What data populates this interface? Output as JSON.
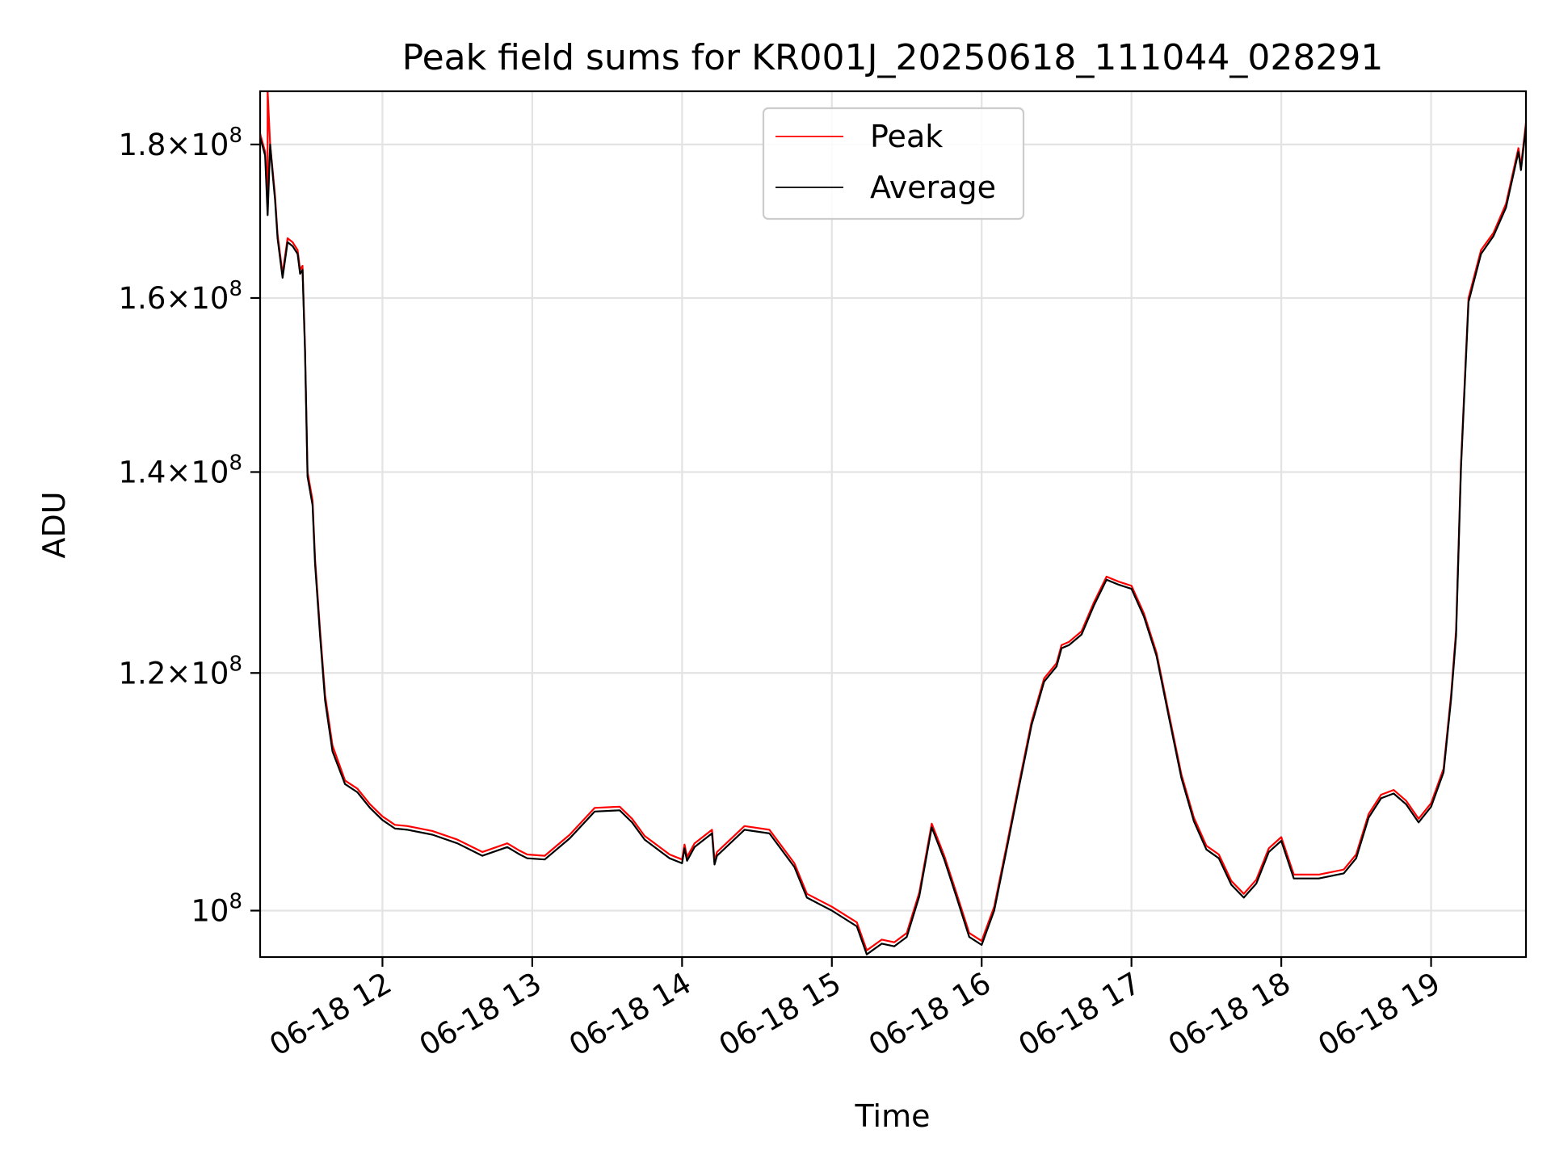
{
  "chart_data": {
    "type": "line",
    "title": "Peak field sums for KR001J_20250618_111044_028291",
    "xlabel": "Time",
    "ylabel": "ADU",
    "y_scale": "log",
    "xlim": [
      "06-18 11:11",
      "06-18 19:38"
    ],
    "ylim": [
      96500000,
      187500000
    ],
    "grid": true,
    "legend_position": "upper center",
    "x_ticks": [
      "06-18 12",
      "06-18 13",
      "06-18 14",
      "06-18 15",
      "06-18 16",
      "06-18 17",
      "06-18 18",
      "06-18 19"
    ],
    "y_ticks": [
      {
        "value": 100000000,
        "mantissa": "",
        "exp": "8"
      },
      {
        "value": 120000000,
        "mantissa": "1.2",
        "exp": "8"
      },
      {
        "value": 140000000,
        "mantissa": "1.4",
        "exp": "8"
      },
      {
        "value": 160000000,
        "mantissa": "1.6",
        "exp": "8"
      },
      {
        "value": 180000000,
        "mantissa": "1.8",
        "exp": "8"
      }
    ],
    "series": [
      {
        "name": "Peak",
        "color": "#ff0000",
        "x": [
          "06-18 11:11",
          "06-18 11:13",
          "06-18 11:14",
          "06-18 11:14",
          "06-18 11:15",
          "06-18 11:16",
          "06-18 11:17",
          "06-18 11:18",
          "06-18 11:20",
          "06-18 11:22",
          "06-18 11:24",
          "06-18 11:26",
          "06-18 11:27",
          "06-18 11:28",
          "06-18 11:29",
          "06-18 11:30",
          "06-18 11:32",
          "06-18 11:33",
          "06-18 11:35",
          "06-18 11:37",
          "06-18 11:40",
          "06-18 11:45",
          "06-18 11:50",
          "06-18 11:55",
          "06-18 12:00",
          "06-18 12:05",
          "06-18 12:10",
          "06-18 12:20",
          "06-18 12:30",
          "06-18 12:40",
          "06-18 12:50",
          "06-18 12:55",
          "06-18 12:58",
          "06-18 13:05",
          "06-18 13:15",
          "06-18 13:25",
          "06-18 13:35",
          "06-18 13:40",
          "06-18 13:45",
          "06-18 13:55",
          "06-18 14:00",
          "06-18 14:01",
          "06-18 14:02",
          "06-18 14:05",
          "06-18 14:12",
          "06-18 14:13",
          "06-18 14:14",
          "06-18 14:25",
          "06-18 14:35",
          "06-18 14:45",
          "06-18 14:50",
          "06-18 15:00",
          "06-18 15:10",
          "06-18 15:14",
          "06-18 15:20",
          "06-18 15:25",
          "06-18 15:30",
          "06-18 15:35",
          "06-18 15:40",
          "06-18 15:45",
          "06-18 15:50",
          "06-18 15:55",
          "06-18 16:00",
          "06-18 16:05",
          "06-18 16:10",
          "06-18 16:15",
          "06-18 16:20",
          "06-18 16:25",
          "06-18 16:30",
          "06-18 16:32",
          "06-18 16:35",
          "06-18 16:40",
          "06-18 16:45",
          "06-18 16:50",
          "06-18 16:55",
          "06-18 17:00",
          "06-18 17:05",
          "06-18 17:10",
          "06-18 17:15",
          "06-18 17:20",
          "06-18 17:25",
          "06-18 17:30",
          "06-18 17:35",
          "06-18 17:40",
          "06-18 17:45",
          "06-18 17:50",
          "06-18 17:55",
          "06-18 18:00",
          "06-18 18:05",
          "06-18 18:15",
          "06-18 18:25",
          "06-18 18:30",
          "06-18 18:35",
          "06-18 18:40",
          "06-18 18:45",
          "06-18 18:50",
          "06-18 18:55",
          "06-18 19:00",
          "06-18 19:05",
          "06-18 19:08",
          "06-18 19:10",
          "06-18 19:12",
          "06-18 19:15",
          "06-18 19:20",
          "06-18 19:25",
          "06-18 19:30",
          "06-18 19:35",
          "06-18 19:36",
          "06-18 19:38"
        ],
        "y": [
          181500000,
          179000000,
          172000000,
          187500000,
          180000000,
          176500000,
          173000000,
          168000000,
          163000000,
          167500000,
          167000000,
          166000000,
          163500000,
          164000000,
          154000000,
          140000000,
          137000000,
          131000000,
          124000000,
          118000000,
          113500000,
          110500000,
          109800000,
          108500000,
          107500000,
          106800000,
          106700000,
          106300000,
          105600000,
          104600000,
          105300000,
          104700000,
          104400000,
          104300000,
          106000000,
          108200000,
          108300000,
          107300000,
          105900000,
          104400000,
          104000000,
          105200000,
          104200000,
          105300000,
          106400000,
          103900000,
          104600000,
          106700000,
          106400000,
          103700000,
          101300000,
          100300000,
          99100000,
          97000000,
          97800000,
          97600000,
          98300000,
          101400000,
          106900000,
          104300000,
          101300000,
          98300000,
          97700000,
          100300000,
          105100000,
          110300000,
          115600000,
          119500000,
          120900000,
          122600000,
          122900000,
          123900000,
          126700000,
          129200000,
          128700000,
          128300000,
          125600000,
          121900000,
          116300000,
          111000000,
          107400000,
          105100000,
          104400000,
          102300000,
          101300000,
          102400000,
          104900000,
          105800000,
          102800000,
          102800000,
          103200000,
          104400000,
          107700000,
          109300000,
          109700000,
          108800000,
          107300000,
          108600000,
          111500000,
          118000000,
          124000000,
          141000000,
          160000000,
          166000000,
          168200000,
          172000000,
          179500000,
          177000000,
          183000000
        ]
      },
      {
        "name": "Average",
        "color": "#000000",
        "x": [
          "06-18 11:11",
          "06-18 11:13",
          "06-18 11:14",
          "06-18 11:15",
          "06-18 11:16",
          "06-18 11:17",
          "06-18 11:18",
          "06-18 11:20",
          "06-18 11:22",
          "06-18 11:24",
          "06-18 11:26",
          "06-18 11:27",
          "06-18 11:28",
          "06-18 11:29",
          "06-18 11:30",
          "06-18 11:32",
          "06-18 11:33",
          "06-18 11:35",
          "06-18 11:37",
          "06-18 11:40",
          "06-18 11:45",
          "06-18 11:50",
          "06-18 11:55",
          "06-18 12:00",
          "06-18 12:05",
          "06-18 12:10",
          "06-18 12:20",
          "06-18 12:30",
          "06-18 12:40",
          "06-18 12:50",
          "06-18 12:55",
          "06-18 12:58",
          "06-18 13:05",
          "06-18 13:15",
          "06-18 13:25",
          "06-18 13:35",
          "06-18 13:40",
          "06-18 13:45",
          "06-18 13:55",
          "06-18 14:00",
          "06-18 14:01",
          "06-18 14:02",
          "06-18 14:05",
          "06-18 14:12",
          "06-18 14:13",
          "06-18 14:14",
          "06-18 14:25",
          "06-18 14:35",
          "06-18 14:45",
          "06-18 14:50",
          "06-18 15:00",
          "06-18 15:10",
          "06-18 15:14",
          "06-18 15:20",
          "06-18 15:25",
          "06-18 15:30",
          "06-18 15:35",
          "06-18 15:40",
          "06-18 15:45",
          "06-18 15:50",
          "06-18 15:55",
          "06-18 16:00",
          "06-18 16:05",
          "06-18 16:10",
          "06-18 16:15",
          "06-18 16:20",
          "06-18 16:25",
          "06-18 16:30",
          "06-18 16:32",
          "06-18 16:35",
          "06-18 16:40",
          "06-18 16:45",
          "06-18 16:50",
          "06-18 16:55",
          "06-18 17:00",
          "06-18 17:05",
          "06-18 17:10",
          "06-18 17:15",
          "06-18 17:20",
          "06-18 17:25",
          "06-18 17:30",
          "06-18 17:35",
          "06-18 17:40",
          "06-18 17:45",
          "06-18 17:50",
          "06-18 17:55",
          "06-18 18:00",
          "06-18 18:05",
          "06-18 18:15",
          "06-18 18:25",
          "06-18 18:30",
          "06-18 18:35",
          "06-18 18:40",
          "06-18 18:45",
          "06-18 18:50",
          "06-18 18:55",
          "06-18 19:00",
          "06-18 19:05",
          "06-18 19:08",
          "06-18 19:10",
          "06-18 19:12",
          "06-18 19:15",
          "06-18 19:20",
          "06-18 19:25",
          "06-18 19:30",
          "06-18 19:35",
          "06-18 19:36",
          "06-18 19:38"
        ],
        "y": [
          181000000,
          178500000,
          170500000,
          180000000,
          176000000,
          172500000,
          167500000,
          162500000,
          167000000,
          166500000,
          165500000,
          163000000,
          163500000,
          153500000,
          139500000,
          136500000,
          130500000,
          123500000,
          117500000,
          113000000,
          110200000,
          109500000,
          108200000,
          107200000,
          106500000,
          106400000,
          106000000,
          105300000,
          104300000,
          105000000,
          104400000,
          104100000,
          104000000,
          105700000,
          107900000,
          108000000,
          107000000,
          105600000,
          104100000,
          103700000,
          104900000,
          103900000,
          105000000,
          106100000,
          103600000,
          104300000,
          106400000,
          106100000,
          103400000,
          101000000,
          100000000,
          98800000,
          96700000,
          97500000,
          97300000,
          98000000,
          101100000,
          106600000,
          104000000,
          101000000,
          98000000,
          97400000,
          100000000,
          104800000,
          110000000,
          115300000,
          119200000,
          120600000,
          122300000,
          122600000,
          123600000,
          126400000,
          128900000,
          128400000,
          128000000,
          125300000,
          121600000,
          116000000,
          110700000,
          107100000,
          104800000,
          104100000,
          102000000,
          101000000,
          102100000,
          104600000,
          105500000,
          102500000,
          102500000,
          102900000,
          104100000,
          107400000,
          109000000,
          109400000,
          108500000,
          107000000,
          108300000,
          111200000,
          117600000,
          123500000,
          140500000,
          159500000,
          165500000,
          167800000,
          171500000,
          179000000,
          176500000,
          182500000
        ]
      }
    ]
  }
}
